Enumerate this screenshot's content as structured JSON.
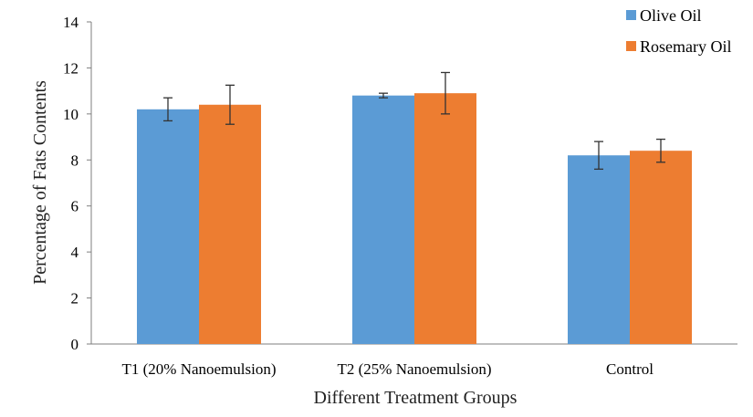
{
  "chart_data": {
    "type": "bar",
    "categories": [
      "T1 (20% Nanoemulsion)",
      "T2 (25% Nanoemulsion)",
      "Control"
    ],
    "series": [
      {
        "name": "Olive Oil",
        "values": [
          10.2,
          10.8,
          8.2
        ],
        "errors": [
          0.5,
          0.1,
          0.6
        ],
        "color": "#5B9BD5"
      },
      {
        "name": "Rosemary Oil",
        "values": [
          10.4,
          10.9,
          8.4
        ],
        "errors": [
          0.85,
          0.9,
          0.5
        ],
        "color": "#ED7D31"
      }
    ],
    "xlabel": "Different Treatment Groups",
    "ylabel": "Percentage of Fats  Contents",
    "ylim": [
      0,
      14
    ],
    "yticks": [
      "0",
      "2",
      "4",
      "6",
      "8",
      "10",
      "12",
      "14"
    ],
    "grid": false,
    "legend_position": "top-right"
  }
}
